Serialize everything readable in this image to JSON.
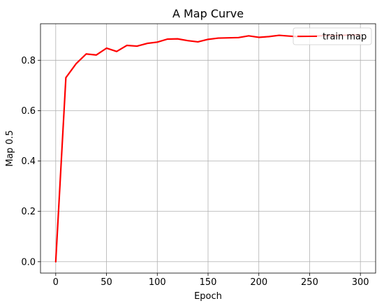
{
  "chart_data": {
    "type": "line",
    "title": "A Map Curve",
    "xlabel": "Epoch",
    "ylabel": "Map 0.5",
    "xlim": [
      -15,
      315
    ],
    "ylim": [
      -0.045,
      0.945
    ],
    "xticks": [
      0,
      50,
      100,
      150,
      200,
      250,
      300
    ],
    "yticks": [
      0.0,
      0.2,
      0.4,
      0.6,
      0.8
    ],
    "ytick_labels": [
      "0.0",
      "0.2",
      "0.4",
      "0.6",
      "0.8"
    ],
    "grid": true,
    "legend_position": "top-right",
    "series": [
      {
        "name": "train map",
        "color": "#ff0000",
        "x": [
          0,
          10,
          20,
          30,
          40,
          50,
          60,
          70,
          80,
          90,
          100,
          110,
          120,
          130,
          140,
          150,
          160,
          170,
          180,
          190,
          200,
          210,
          220,
          230,
          240,
          250,
          260,
          270,
          280,
          290,
          300
        ],
        "y": [
          0.0,
          0.731,
          0.786,
          0.825,
          0.821,
          0.848,
          0.835,
          0.859,
          0.856,
          0.867,
          0.872,
          0.884,
          0.885,
          0.878,
          0.873,
          0.883,
          0.888,
          0.889,
          0.89,
          0.897,
          0.891,
          0.894,
          0.899,
          0.896,
          0.893,
          0.895,
          0.897,
          0.898,
          0.899,
          0.9,
          0.901
        ]
      }
    ]
  }
}
